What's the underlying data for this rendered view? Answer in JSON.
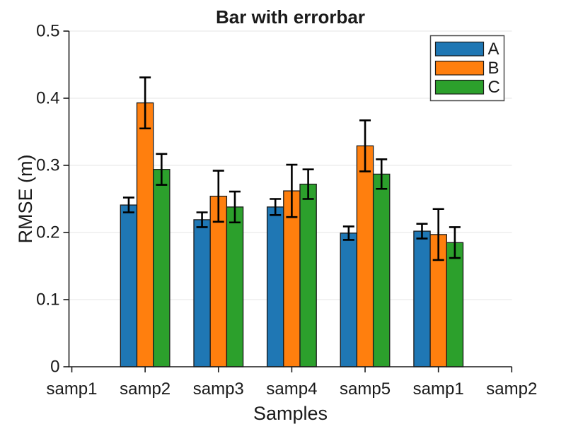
{
  "figure": {
    "title": "Bar with errorbar",
    "xlabel": "Samples",
    "ylabel": "RMSE (m)"
  },
  "chart_data": {
    "type": "bar",
    "title": "Bar with errorbar",
    "xlabel": "Samples",
    "ylabel": "RMSE (m)",
    "categories": [
      "samp1",
      "samp2",
      "samp3",
      "samp4",
      "samp5",
      "samp1",
      "samp2"
    ],
    "series": [
      {
        "name": "A",
        "color": "#1f77b4",
        "values": [
          null,
          0.241,
          0.219,
          0.238,
          0.199,
          0.202,
          null
        ],
        "errors": [
          null,
          0.011,
          0.011,
          0.012,
          0.01,
          0.011,
          null
        ]
      },
      {
        "name": "B",
        "color": "#ff7f0e",
        "values": [
          null,
          0.393,
          0.254,
          0.262,
          0.329,
          0.197,
          null
        ],
        "errors": [
          null,
          0.038,
          0.038,
          0.039,
          0.038,
          0.038,
          null
        ]
      },
      {
        "name": "C",
        "color": "#2ca02c",
        "values": [
          null,
          0.294,
          0.238,
          0.272,
          0.287,
          0.185,
          null
        ],
        "errors": [
          null,
          0.023,
          0.023,
          0.022,
          0.022,
          0.023,
          null
        ]
      }
    ],
    "ylim": [
      0,
      0.5
    ],
    "yticks": [
      "0",
      "0.1",
      "0.2",
      "0.3",
      "0.4",
      "0.5"
    ],
    "grid": true,
    "legend": {
      "position": "top-right",
      "entries": [
        "A",
        "B",
        "C"
      ]
    },
    "colors": {
      "bar_edge": "#1a1a1a",
      "errorbar": "#000000",
      "axis": "#1a1a1a",
      "grid_line": "#ebebeb",
      "text": "#1a1a1a",
      "legend_border": "#4d4d4d",
      "legend_fill": "#ffffff"
    }
  }
}
